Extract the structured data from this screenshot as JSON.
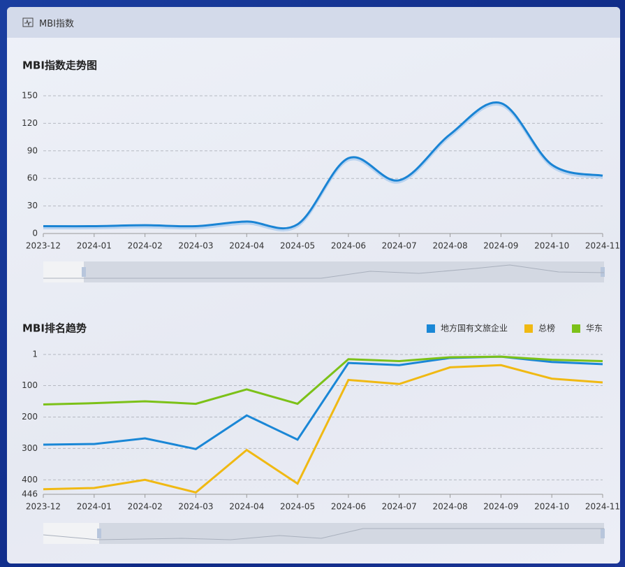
{
  "header": {
    "title": "MBI指数"
  },
  "chart_data": [
    {
      "type": "line",
      "title": "MBI指数走势图",
      "categories": [
        "2023-12",
        "2024-01",
        "2024-02",
        "2024-03",
        "2024-04",
        "2024-05",
        "2024-06",
        "2024-07",
        "2024-08",
        "2024-09",
        "2024-10",
        "2024-11"
      ],
      "series": [
        {
          "name": "MBI指数",
          "color": "#1a84d4",
          "values": [
            8,
            8,
            9,
            8,
            13,
            10,
            82,
            58,
            108,
            142,
            75,
            63
          ]
        }
      ],
      "ylim": [
        0,
        150
      ],
      "yticks": [
        0,
        30,
        60,
        90,
        120,
        150
      ],
      "grid": true,
      "smooth": true,
      "legend": false
    },
    {
      "type": "line",
      "title": "MBI排名趋势",
      "categories": [
        "2023-12",
        "2024-01",
        "2024-02",
        "2024-03",
        "2024-04",
        "2024-05",
        "2024-06",
        "2024-07",
        "2024-08",
        "2024-09",
        "2024-10",
        "2024-11"
      ],
      "series": [
        {
          "name": "地方国有文旅企业",
          "color": "#1a87d6",
          "values": [
            288,
            286,
            268,
            302,
            195,
            272,
            28,
            35,
            12,
            8,
            25,
            32
          ]
        },
        {
          "name": "总榜",
          "color": "#f0b913",
          "values": [
            430,
            426,
            400,
            440,
            305,
            412,
            82,
            95,
            42,
            35,
            78,
            90
          ]
        },
        {
          "name": "华东",
          "color": "#7cc118",
          "values": [
            160,
            156,
            150,
            158,
            112,
            158,
            16,
            22,
            10,
            8,
            18,
            22
          ]
        }
      ],
      "ylim": [
        1,
        446
      ],
      "yticks": [
        1,
        100,
        200,
        300,
        400,
        446
      ],
      "inverted": true,
      "grid": true,
      "smooth": false,
      "legend": "top-right"
    }
  ]
}
